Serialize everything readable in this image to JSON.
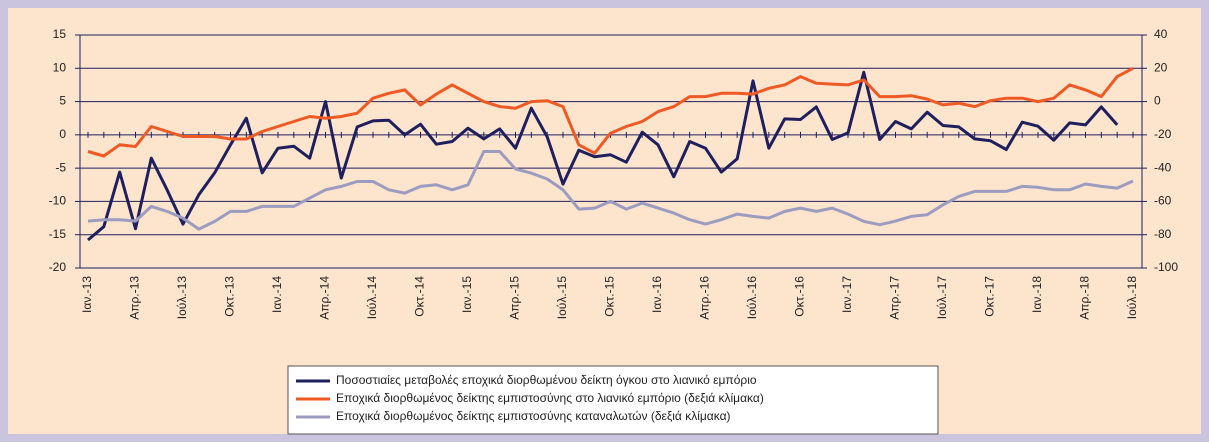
{
  "chart_data": {
    "type": "line",
    "categories": [
      "Ιαν.-13",
      null,
      null,
      "Απρ.-13",
      null,
      null,
      "Ιούλ.-13",
      null,
      null,
      "Οκτ.-13",
      null,
      null,
      "Ιαν.-14",
      null,
      null,
      "Απρ.-14",
      null,
      null,
      "Ιούλ.-14",
      null,
      null,
      "Οκτ.-14",
      null,
      null,
      "Ιαν.-15",
      null,
      null,
      "Απρ.-15",
      null,
      null,
      "Ιούλ.-15",
      null,
      null,
      "Οκτ.-15",
      null,
      null,
      "Ιαν.-16",
      null,
      null,
      "Απρ.-16",
      null,
      null,
      "Ιούλ.-16",
      null,
      null,
      "Οκτ.-16",
      null,
      null,
      "Ιαν.-17",
      null,
      null,
      "Απρ.-17",
      null,
      null,
      "Ιούλ.-17",
      null,
      null,
      "Οκτ.-17",
      null,
      null,
      "Ιαν.-18",
      null,
      null,
      "Απρ.-18",
      null,
      null,
      "Ιούλ.-18"
    ],
    "series": [
      {
        "name": "Ποσοστιαίες μεταβολές εποχικά διορθωμένου δείκτη όγκου στο λιανικό εμπόριο",
        "color": "#1f1f5e",
        "axis": "y",
        "values": [
          -15.8,
          -13.8,
          -5.6,
          -14.1,
          -3.5,
          -8.3,
          -13.4,
          -9,
          -5.7,
          -1.5,
          2.5,
          -5.7,
          -2,
          -1.7,
          -3.5,
          5,
          -6.5,
          1.2,
          2.1,
          2.2,
          0,
          1.6,
          -1.4,
          -1,
          1,
          -0.6,
          0.9,
          -2,
          4,
          -0.3,
          -7.4,
          -2.3,
          -3.3,
          -3,
          -4.1,
          0.4,
          -1.5,
          -6.3,
          -1,
          -2,
          -5.6,
          -3.6,
          8.1,
          -2,
          2.4,
          2.3,
          4.2,
          -0.7,
          0.3,
          9.4,
          -0.7,
          2,
          0.9,
          3.4,
          1.4,
          1.2,
          -0.6,
          -0.9,
          -2.2,
          1.9,
          1.3,
          -0.8,
          1.8,
          1.5,
          4.2,
          1.5,
          null
        ]
      },
      {
        "name": "Εποχικά διορθωμένος δείκτης εμπιστοσύνης στο λιανικό εμπόριο (δεξιά κλίμακα)",
        "color": "#ef5a24",
        "axis": "y2",
        "values": [
          -30,
          -32.7,
          -26,
          -27,
          -15,
          -18,
          -21,
          -21,
          -21,
          -22.5,
          -22.5,
          -18,
          -15,
          -12,
          -9,
          -10,
          -9,
          -7,
          2,
          5,
          7,
          -2,
          4.5,
          10,
          5,
          0,
          -3,
          -4,
          0,
          0.5,
          -3,
          -26,
          -31,
          -19,
          -15,
          -12,
          -6,
          -3,
          3,
          3,
          5,
          5,
          4.5,
          8,
          10,
          15,
          11,
          10.5,
          10,
          13,
          3,
          3,
          3.5,
          1.5,
          -2,
          -1,
          -3,
          0.5,
          2,
          2,
          0,
          2,
          10,
          7,
          3,
          15,
          20
        ]
      },
      {
        "name": "Εποχικά διορθωμένος δείκτης εμπιστοσύνης καταναλωτών (δεξιά κλίμακα)",
        "color": "#9c9cc0",
        "axis": "y2",
        "values": [
          -71.8,
          -71,
          -71,
          -71.8,
          -63,
          -66,
          -70,
          -76.6,
          -72,
          -66,
          -66,
          -63,
          -63,
          -63,
          -58,
          -53,
          -51,
          -48,
          -48,
          -53,
          -55,
          -51,
          -50,
          -53,
          -50,
          -30,
          -30,
          -40.5,
          -43,
          -46.5,
          -53,
          -64.6,
          -64,
          -60,
          -64.6,
          -61,
          -64,
          -67,
          -71,
          -73.6,
          -71,
          -67.6,
          -69,
          -70,
          -66,
          -64,
          -66,
          -64,
          -67.6,
          -72,
          -74,
          -71.8,
          -69,
          -68,
          -62,
          -57,
          -54,
          -54,
          -54,
          -51,
          -51.5,
          -53,
          -53,
          -49.5,
          -51,
          -52,
          -47.7
        ]
      }
    ],
    "ylim": [
      -20,
      15
    ],
    "yticks": [
      -20,
      -15,
      -10,
      -5,
      0,
      5,
      10,
      15
    ],
    "y2lim": [
      -100,
      40
    ],
    "y2ticks": [
      -100,
      -80,
      -60,
      -40,
      -20,
      0,
      20,
      40
    ],
    "grid": true
  }
}
